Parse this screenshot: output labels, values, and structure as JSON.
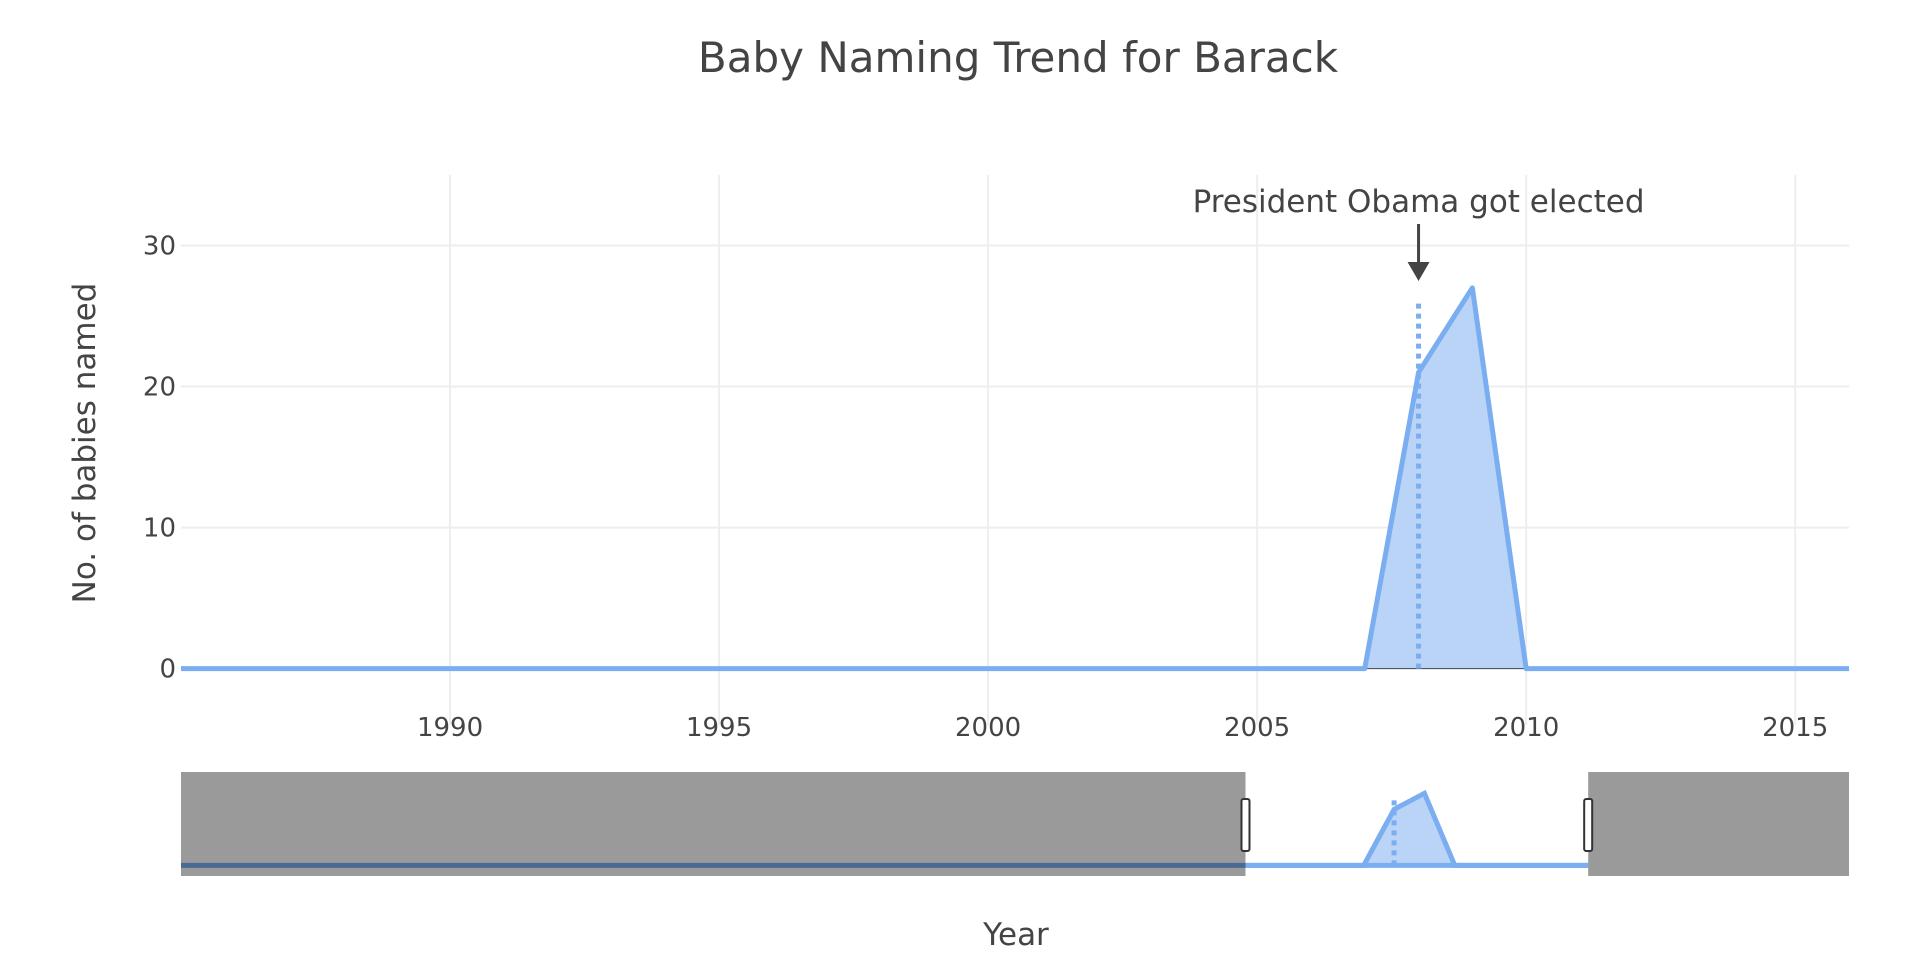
{
  "chart_data": {
    "type": "area",
    "title": "Baby Naming Trend for Barack",
    "xlabel": "Year",
    "ylabel": "No. of babies named",
    "xlim": [
      1985,
      2016
    ],
    "ylim": [
      -4,
      35
    ],
    "x_ticks": [
      1990,
      1995,
      2000,
      2005,
      2010,
      2015
    ],
    "y_ticks": [
      0,
      10,
      20,
      30
    ],
    "grid": true,
    "series": [
      {
        "x": [
          1985,
          2007,
          2008,
          2009,
          2010,
          2016
        ],
        "values": [
          0,
          0,
          21,
          27,
          0,
          0
        ],
        "color": "#7aaef0",
        "fill": "#b9d4f7"
      }
    ],
    "vertical_marker": {
      "x": 2008,
      "value_top": 26,
      "color": "#7aaef0",
      "style": "dotted"
    },
    "annotation": {
      "text": "President Obama got elected",
      "x": 2008,
      "arrow": true
    },
    "range_slider": {
      "full_range": [
        1968,
        2023
      ],
      "selected_range": [
        2003.1,
        2014.4
      ]
    },
    "colors": {
      "line": "#7aaef0",
      "fill": "#b9d4f7",
      "grid": "#eeeeee",
      "text": "#444444",
      "slider_mask": "#9a9a9a",
      "slider_line_dark": "#4a6a94"
    }
  }
}
